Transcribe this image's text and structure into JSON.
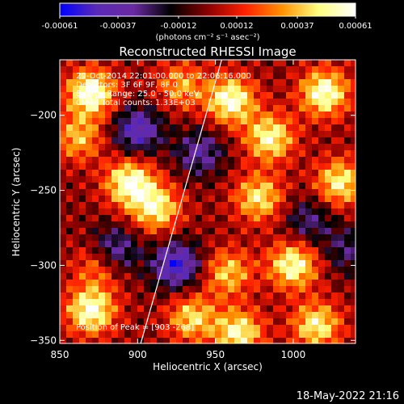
{
  "chart_data": {
    "type": "heatmap",
    "title": "Reconstructed RHESSI Image",
    "xlabel": "Heliocentric X (arcsec)",
    "ylabel": "Heliocentric Y (arcsec)",
    "xlim": [
      850,
      1040
    ],
    "ylim": [
      -352,
      -163
    ],
    "x_ticks": [
      850,
      900,
      950,
      1000
    ],
    "y_ticks": [
      -200,
      -250,
      -300,
      -350
    ],
    "colorbar": {
      "min": -0.00061,
      "max": 0.00061,
      "tick_values": [
        -0.00061,
        -0.00037,
        -0.00012,
        0.00012,
        0.00037,
        0.00061
      ],
      "tick_labels": [
        "-0.00061",
        "-0.00037",
        "-0.00012",
        "0.00012",
        "0.00037",
        "0.00061"
      ],
      "unit_label": "(photons cm⁻² s⁻¹ asec⁻²)",
      "colormap": [
        "#0000ff",
        "#5a2ab5",
        "#6a2aa0",
        "#000000",
        "#8a0000",
        "#ff2000",
        "#ff9000",
        "#ffff80",
        "#ffffff"
      ]
    },
    "info_lines": [
      "29-Oct-2014 22:01:00.000 to 22:06:16.000",
      "Detectors: 3F 6F 9F, 8F 0",
      "Energy Range: 25.0 - 50.0 keV",
      "Clean     Total counts: 1.33E+03"
    ],
    "peak_label": "Position of Peak = [903 -268]",
    "limb_line": [
      [
        902,
        -352
      ],
      [
        954,
        -163
      ]
    ],
    "blobs": [
      {
        "x": 870,
        "y": -185,
        "v": 1.0
      },
      {
        "x": 862,
        "y": -215,
        "v": 0.6
      },
      {
        "x": 875,
        "y": -300,
        "v": 0.5
      },
      {
        "x": 870,
        "y": -330,
        "v": 0.95
      },
      {
        "x": 895,
        "y": -245,
        "v": 0.95
      },
      {
        "x": 912,
        "y": -262,
        "v": 0.8
      },
      {
        "x": 928,
        "y": -180,
        "v": 0.55
      },
      {
        "x": 935,
        "y": -335,
        "v": 0.7
      },
      {
        "x": 960,
        "y": -190,
        "v": 0.95
      },
      {
        "x": 958,
        "y": -305,
        "v": 0.65
      },
      {
        "x": 965,
        "y": -345,
        "v": 0.85
      },
      {
        "x": 985,
        "y": -215,
        "v": 0.85
      },
      {
        "x": 978,
        "y": -255,
        "v": 0.75
      },
      {
        "x": 1000,
        "y": -300,
        "v": 0.9
      },
      {
        "x": 1020,
        "y": -185,
        "v": 0.95
      },
      {
        "x": 1030,
        "y": -245,
        "v": 0.8
      },
      {
        "x": 1015,
        "y": -340,
        "v": 0.8
      },
      {
        "x": 900,
        "y": -210,
        "v": -0.75
      },
      {
        "x": 885,
        "y": -290,
        "v": -0.65
      },
      {
        "x": 925,
        "y": -300,
        "v": -0.85
      },
      {
        "x": 940,
        "y": -225,
        "v": -0.55
      },
      {
        "x": 1010,
        "y": -270,
        "v": -0.45
      },
      {
        "x": 1035,
        "y": -290,
        "v": -0.4
      }
    ]
  },
  "footer": {
    "timestamp": "18-May-2022 21:16"
  }
}
